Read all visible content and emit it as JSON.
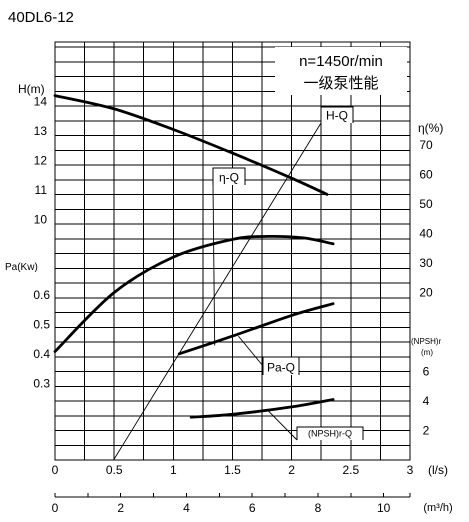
{
  "chart_data": {
    "type": "line",
    "title": "40DL6-12",
    "info_box": [
      "n=1450r/min",
      "一级泵性能"
    ],
    "x_axis": {
      "label": "(l/s)",
      "range": [
        0,
        3
      ],
      "ticks": [
        0,
        0.5,
        1,
        1.5,
        2,
        2.5,
        3
      ],
      "tick_labels": [
        "0",
        "0.5",
        "1",
        "1.5",
        "2",
        "2.5",
        "3"
      ]
    },
    "x2_axis": {
      "label": "(m³/h)",
      "range": [
        0,
        10.8
      ],
      "ticks": [
        0,
        2,
        4,
        6,
        8,
        10
      ],
      "tick_labels": [
        "0",
        "2",
        "4",
        "6",
        "8",
        "10"
      ]
    },
    "left_axes": [
      {
        "label": "H(m)",
        "range": [
          9,
          14
        ],
        "tick_labels": [
          "14",
          "13",
          "12",
          "11",
          "10"
        ],
        "tick_values": [
          14,
          13,
          12,
          11,
          10
        ]
      },
      {
        "label": "Pa(Kw)",
        "range": [
          0,
          0.6
        ],
        "tick_labels": [
          "0.6",
          "0.5",
          "0.4",
          "0.3"
        ],
        "tick_values": [
          0.6,
          0.5,
          0.4,
          0.3
        ]
      }
    ],
    "right_axes": [
      {
        "label": "η(%)",
        "range": [
          0,
          80
        ],
        "tick_labels": [
          "70",
          "60",
          "50",
          "40",
          "30",
          "20"
        ],
        "tick_values": [
          70,
          60,
          50,
          40,
          30,
          20
        ]
      },
      {
        "label": "(NPSH)r",
        "unit": "(m)",
        "range": [
          0,
          10
        ],
        "tick_labels": [
          "6",
          "4",
          "2"
        ],
        "tick_values": [
          6,
          4,
          2
        ]
      }
    ],
    "series": [
      {
        "name": "H-Q",
        "axis": "H(m)",
        "x": [
          0,
          0.5,
          1.0,
          1.5,
          2.0,
          2.3
        ],
        "y": [
          14.2,
          13.75,
          13.05,
          12.25,
          11.4,
          10.85
        ]
      },
      {
        "name": "η-Q",
        "axis": "η(%)",
        "x": [
          0,
          0.5,
          1.0,
          1.5,
          1.8,
          2.1,
          2.35
        ],
        "y": [
          0,
          20,
          32,
          38,
          39,
          38.5,
          36.5
        ]
      },
      {
        "name": "Pa-Q",
        "axis": "Pa(Kw)",
        "x": [
          1.05,
          1.5,
          2.0,
          2.35
        ],
        "y": [
          0.4,
          0.46,
          0.53,
          0.57
        ]
      },
      {
        "name": "(NPSH)r-Q",
        "axis": "(NPSH)r",
        "x": [
          1.15,
          1.5,
          2.0,
          2.35
        ],
        "y": [
          2.9,
          3.1,
          3.6,
          4.1
        ]
      }
    ],
    "grid": true
  }
}
